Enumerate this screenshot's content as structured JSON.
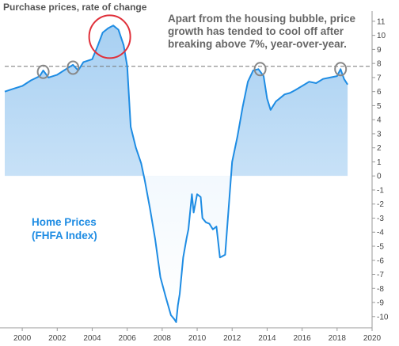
{
  "title": "Purchase prices, rate of change",
  "annotation": "Apart from the housing bubble, price growth has tended to cool off after breaking above 7%, year-over-year.",
  "chart_data": {
    "type": "area",
    "title": "Purchase prices, rate of change",
    "xlabel": "",
    "ylabel": "",
    "xlim": [
      1999,
      2020
    ],
    "ylim": [
      -10.8,
      11.5
    ],
    "x_ticks": [
      2000,
      2002,
      2004,
      2006,
      2008,
      2010,
      2012,
      2014,
      2016,
      2018,
      2020
    ],
    "y_ticks": [
      11,
      10,
      9,
      8,
      7,
      6,
      5,
      4,
      3,
      2,
      1,
      0,
      -1,
      -2,
      -3,
      -4,
      -5,
      -6,
      -7,
      -8,
      -9,
      -10
    ],
    "y_axis_side": "right",
    "grid": false,
    "series": [
      {
        "name": "Home Prices (FHFA Index)",
        "color": "#1e8ce3",
        "x": [
          1999.0,
          1999.5,
          2000.0,
          2000.5,
          2001.0,
          2001.2,
          2001.5,
          2002.0,
          2002.5,
          2002.9,
          2003.2,
          2003.5,
          2004.0,
          2004.3,
          2004.6,
          2004.9,
          2005.2,
          2005.5,
          2005.8,
          2006.0,
          2006.2,
          2006.5,
          2006.8,
          2007.0,
          2007.3,
          2007.6,
          2007.9,
          2008.2,
          2008.5,
          2008.7,
          2008.8,
          2008.9,
          2009.0,
          2009.2,
          2009.4,
          2009.5,
          2009.7,
          2009.8,
          2010.0,
          2010.2,
          2010.3,
          2010.5,
          2010.7,
          2010.9,
          2011.1,
          2011.3,
          2011.6,
          2011.8,
          2012.0,
          2012.3,
          2012.6,
          2012.9,
          2013.2,
          2013.5,
          2013.8,
          2014.0,
          2014.2,
          2014.5,
          2014.8,
          2015.0,
          2015.3,
          2015.6,
          2016.0,
          2016.4,
          2016.8,
          2017.2,
          2017.6,
          2018.0,
          2018.2,
          2018.4,
          2018.6
        ],
        "values": [
          6.0,
          6.2,
          6.4,
          6.8,
          7.1,
          7.5,
          7.0,
          7.2,
          7.6,
          7.9,
          7.5,
          8.1,
          8.3,
          9.2,
          10.2,
          10.5,
          10.7,
          10.4,
          9.3,
          7.8,
          3.5,
          2.0,
          0.9,
          -0.3,
          -2.3,
          -4.5,
          -7.2,
          -8.6,
          -9.9,
          -10.2,
          -10.4,
          -9.2,
          -8.4,
          -5.8,
          -4.4,
          -3.8,
          -1.3,
          -2.6,
          -1.3,
          -1.5,
          -3.0,
          -3.3,
          -3.4,
          -3.8,
          -3.6,
          -5.8,
          -5.6,
          -2.3,
          1.0,
          2.8,
          4.9,
          6.7,
          7.5,
          7.6,
          7.1,
          5.5,
          4.7,
          5.3,
          5.6,
          5.8,
          5.9,
          6.1,
          6.4,
          6.7,
          6.6,
          6.9,
          7.0,
          7.1,
          7.6,
          6.9,
          6.5
        ]
      }
    ],
    "reference_line": {
      "y": 7.8,
      "style": "dashed",
      "color": "#777777"
    },
    "highlight_circles": [
      {
        "x": 2001.2,
        "y": 7.4,
        "color": "#888888"
      },
      {
        "x": 2002.9,
        "y": 7.7,
        "color": "#888888"
      },
      {
        "x": 2005.0,
        "y": 9.9,
        "color": "#e0303a"
      },
      {
        "x": 2013.6,
        "y": 7.6,
        "color": "#888888"
      },
      {
        "x": 2018.2,
        "y": 7.6,
        "color": "#888888"
      }
    ],
    "series_label": [
      "Home Prices",
      "(FHFA Index)"
    ]
  }
}
